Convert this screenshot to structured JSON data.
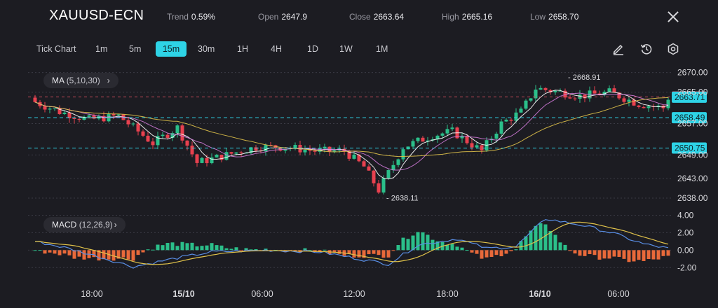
{
  "header": {
    "symbol": "XAUUSD-ECN",
    "trend_label": "Trend",
    "trend_value": "0.59%",
    "open_label": "Open",
    "open_value": "2647.9",
    "close_label": "Close",
    "close_value": "2663.64",
    "high_label": "High",
    "high_value": "2665.16",
    "low_label": "Low",
    "low_value": "2658.70"
  },
  "toolbar": {
    "timeframes": [
      "Tick Chart",
      "1m",
      "5m",
      "15m",
      "30m",
      "1H",
      "4H",
      "1D",
      "1W",
      "1M"
    ],
    "active_timeframe": "15m",
    "tools": [
      "pencil-icon",
      "history-icon",
      "settings-icon"
    ]
  },
  "indicators": {
    "ma_label": "MA",
    "ma_params": "(5,10,30)",
    "macd_label": "MACD",
    "macd_params": "(12,26,9)"
  },
  "colors": {
    "up": "#2bbf8a",
    "down": "#e8414f",
    "accent": "#2ed3e6",
    "ma5": "#ffffff",
    "ma10": "#d07ad8",
    "ma30": "#e0c24a",
    "macd_line": "#5a8fe6",
    "signal_line": "#e0c24a",
    "hist_up": "#2bbf8a",
    "hist_down": "#e8693a"
  },
  "chart_data": {
    "type": "candlestick",
    "price_axis": {
      "ticks": [
        "2670.00",
        "2665.00",
        "2657.00",
        "2649.00",
        "2643.00",
        "2638.00"
      ],
      "tick_values": [
        2670,
        2665,
        2657,
        2649,
        2643,
        2638
      ],
      "range": [
        2634.6,
        2672.8
      ]
    },
    "x_ticks": [
      "18:00",
      "15/10",
      "06:00",
      "12:00",
      "18:00",
      "16/10",
      "06:00"
    ],
    "x_tick_bold": [
      false,
      true,
      false,
      false,
      false,
      true,
      false
    ],
    "price_tags": [
      {
        "value": 2663.78,
        "label": "2663.78",
        "kind": "red"
      },
      {
        "value": 2663.71,
        "label": "2663.71",
        "kind": "cyan"
      },
      {
        "value": 2658.49,
        "label": "2658.49",
        "kind": "cyan"
      },
      {
        "value": 2650.75,
        "label": "2650.75",
        "kind": "cyan"
      }
    ],
    "annotations": [
      {
        "value": 2668.91,
        "label": "2668.91",
        "candle": 108
      },
      {
        "value": 2638.11,
        "label": "2638.11",
        "candle": 71
      }
    ],
    "macd_axis": {
      "ticks": [
        "4.00",
        "2.00",
        "0.00",
        "-2.00"
      ],
      "tick_values": [
        4,
        2,
        0,
        -2
      ],
      "range": [
        -3.1,
        4.6
      ]
    },
    "candle_count": 130,
    "price_path": [
      [
        0,
        2663
      ],
      [
        6,
        2660
      ],
      [
        12,
        2658
      ],
      [
        18,
        2659
      ],
      [
        25,
        2652
      ],
      [
        30,
        2656
      ],
      [
        34,
        2647
      ],
      [
        40,
        2649
      ],
      [
        46,
        2651
      ],
      [
        52,
        2651
      ],
      [
        58,
        2650
      ],
      [
        64,
        2650
      ],
      [
        68,
        2646
      ],
      [
        71,
        2640
      ],
      [
        76,
        2651
      ],
      [
        82,
        2654
      ],
      [
        86,
        2655
      ],
      [
        92,
        2650
      ],
      [
        96,
        2657
      ],
      [
        100,
        2660
      ],
      [
        103,
        2666
      ],
      [
        108,
        2665
      ],
      [
        112,
        2664
      ],
      [
        118,
        2665
      ],
      [
        124,
        2662
      ],
      [
        129,
        2661
      ],
      [
        130,
        2663.6
      ]
    ],
    "macd_path": [
      [
        0,
        1.0
      ],
      [
        6,
        0.3
      ],
      [
        12,
        -0.6
      ],
      [
        20,
        -1.9
      ],
      [
        28,
        -1.0
      ],
      [
        36,
        -0.2
      ],
      [
        48,
        0.0
      ],
      [
        58,
        -0.2
      ],
      [
        66,
        -1.0
      ],
      [
        72,
        -1.6
      ],
      [
        78,
        0.6
      ],
      [
        86,
        1.3
      ],
      [
        92,
        0.2
      ],
      [
        98,
        0.4
      ],
      [
        104,
        3.6
      ],
      [
        112,
        2.8
      ],
      [
        118,
        1.9
      ],
      [
        124,
        0.7
      ],
      [
        130,
        0.1
      ]
    ]
  }
}
